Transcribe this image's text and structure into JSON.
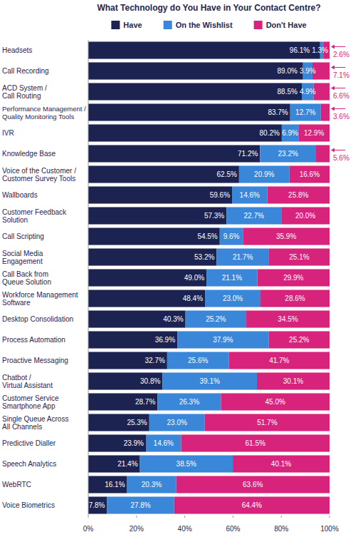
{
  "chart_data": {
    "type": "bar",
    "orientation": "horizontal",
    "stacked": true,
    "data_labels": true,
    "grid": false,
    "legend": "top",
    "title": "What Technology do You Have in Your Contact Centre?",
    "categories": [
      "Headsets",
      "Call Recording",
      "ACD System /\nCall Routing",
      "Performance Management /\nQuality Monitoring Tools",
      "IVR",
      "Knowledge Base",
      "Voice of the Customer /\nCustomer Survey Tools",
      "Wallboards",
      "Customer Feedback\nSolution",
      "Call Scripting",
      "Social Media\nEngagement",
      "Call Back from\nQueue Solution",
      "Workforce Management\nSoftware",
      "Desktop Consolidation",
      "Process Automation",
      "Proactive Messaging",
      "Chatbot /\nVirtual Assistant",
      "Customer Service\nSmartphone App",
      "Single Queue Across\nAll Channels",
      "Predictive Dialler",
      "Speech Analytics",
      "WebRTC",
      "Voice Biometrics"
    ],
    "series": [
      {
        "name": "Have",
        "color": "#1c2350",
        "values": [
          96.1,
          89.0,
          88.5,
          83.7,
          80.2,
          71.2,
          62.5,
          59.6,
          57.3,
          54.5,
          53.2,
          49.0,
          48.4,
          40.3,
          36.9,
          32.7,
          30.8,
          28.7,
          25.3,
          23.9,
          21.4,
          16.1,
          7.8
        ],
        "value_labels": [
          "96.1%",
          "89.0%",
          "88.5%",
          "83.7%",
          "80.2%",
          "71.2%",
          "62.5%",
          "59.6%",
          "57.3%",
          "54.5%",
          "53.2%",
          "49.0%",
          "48.4%",
          "40.3%",
          "36.9%",
          "32.7%",
          "30.8%",
          "28.7%",
          "25.3%",
          "23.9%",
          "21.4%",
          "16.1%",
          "7.8%"
        ]
      },
      {
        "name": "On the Wishlist",
        "color": "#3a86d8",
        "values": [
          1.3,
          3.9,
          4.9,
          12.7,
          6.9,
          23.2,
          20.9,
          14.6,
          22.7,
          9.6,
          21.7,
          21.1,
          23.0,
          25.2,
          37.9,
          25.6,
          39.1,
          26.3,
          23.0,
          14.6,
          38.5,
          20.3,
          27.8
        ],
        "value_labels": [
          "1.3%",
          "3.9%",
          "4.9%",
          "12.7%",
          "6.9%",
          "23.2%",
          "20.9%",
          "14.6%",
          "22.7%",
          "9.6%",
          "21.7%",
          "21.1%",
          "23.0%",
          "25.2%",
          "37.9%",
          "25.6%",
          "39.1%",
          "26.3%",
          "23.0%",
          "14.6%",
          "38.5%",
          "20.3%",
          "27.8%"
        ]
      },
      {
        "name": "Don't Have",
        "color": "#d8237c",
        "values": [
          2.6,
          7.1,
          6.6,
          3.6,
          12.9,
          5.6,
          16.6,
          25.8,
          20.0,
          35.9,
          25.1,
          29.9,
          28.6,
          34.5,
          25.2,
          41.7,
          30.1,
          45.0,
          51.7,
          61.5,
          40.1,
          63.6,
          64.4
        ],
        "value_labels": [
          "2.6%",
          "7.1%",
          "6.6%",
          "3.6%",
          "12.9%",
          "5.6%",
          "16.6%",
          "25.8%",
          "20.0%",
          "35.9%",
          "25.1%",
          "29.9%",
          "28.6%",
          "34.5%",
          "25.2%",
          "41.7%",
          "30.1%",
          "45.0%",
          "51.7%",
          "61.5%",
          "40.1%",
          "63.6%",
          "64.4%"
        ]
      }
    ],
    "xlim": [
      0,
      100
    ],
    "xticks": [
      {
        "value": 0,
        "label": "0%"
      },
      {
        "value": 20,
        "label": "20%"
      },
      {
        "value": 40,
        "label": "40%"
      },
      {
        "value": 60,
        "label": "60%"
      },
      {
        "value": 80,
        "label": "80%"
      },
      {
        "value": 100,
        "label": "100%"
      }
    ]
  }
}
